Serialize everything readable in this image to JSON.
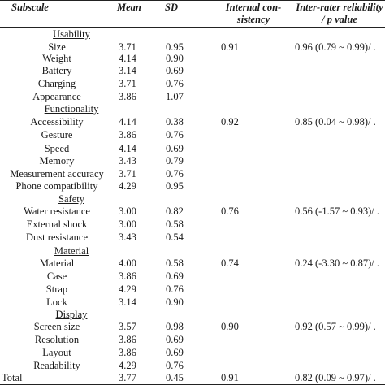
{
  "headers": {
    "subscale": "Subscale",
    "mean": "Mean",
    "sd": "SD",
    "internal_line1": "Internal con-",
    "internal_line2": "sistency",
    "inter_line1": "Inter-rater reliability",
    "inter_line2": "/ p value"
  },
  "groups": [
    {
      "title": "Usability",
      "internal_consistency": "0.91",
      "inter_rater": "0.96 (0.79 ~ 0.99)/ .",
      "rows": [
        {
          "label": "Size",
          "mean": "3.71",
          "sd": "0.95"
        },
        {
          "label": "Weight",
          "mean": "4.14",
          "sd": "0.90"
        },
        {
          "label": "Battery",
          "mean": "3.14",
          "sd": "0.69"
        },
        {
          "label": "Charging",
          "mean": "3.71",
          "sd": "0.76"
        },
        {
          "label": "Appearance",
          "mean": "3.86",
          "sd": "1.07"
        }
      ]
    },
    {
      "title": "Functionality",
      "internal_consistency": "0.92",
      "inter_rater": "0.85 (0.04 ~ 0.98)/ .",
      "rows": [
        {
          "label": "Accessibility",
          "mean": "4.14",
          "sd": "0.38"
        },
        {
          "label": "Gesture",
          "mean": "3.86",
          "sd": "0.76"
        },
        {
          "label": "Speed",
          "mean": "4.14",
          "sd": "0.69"
        },
        {
          "label": "Memory",
          "mean": "3.43",
          "sd": "0.79"
        },
        {
          "label": "Measurement accuracy",
          "mean": "3.71",
          "sd": "0.76"
        },
        {
          "label": "Phone compatibility",
          "mean": "4.29",
          "sd": "0.95"
        }
      ]
    },
    {
      "title": "Safety",
      "internal_consistency": "0.76",
      "inter_rater": "0.56 (-1.57 ~ 0.93)/ .",
      "rows": [
        {
          "label": "Water resistance",
          "mean": "3.00",
          "sd": "0.82"
        },
        {
          "label": "External shock",
          "mean": "3.00",
          "sd": "0.58"
        },
        {
          "label": "Dust resistance",
          "mean": "3.43",
          "sd": "0.54"
        }
      ]
    },
    {
      "title": "Material",
      "internal_consistency": "0.74",
      "inter_rater": "0.24 (-3.30 ~ 0.87)/ .",
      "rows": [
        {
          "label": "Material",
          "mean": "4.00",
          "sd": "0.58"
        },
        {
          "label": "Case",
          "mean": "3.86",
          "sd": "0.69"
        },
        {
          "label": "Strap",
          "mean": "4.29",
          "sd": "0.76"
        },
        {
          "label": "Lock",
          "mean": "3.14",
          "sd": "0.90"
        }
      ]
    },
    {
      "title": "Display",
      "internal_consistency": "0.90",
      "inter_rater": "0.92 (0.57 ~ 0.99)/ .",
      "rows": [
        {
          "label": "Screen size",
          "mean": "3.57",
          "sd": "0.98"
        },
        {
          "label": "Resolution",
          "mean": "3.86",
          "sd": "0.69"
        },
        {
          "label": "Layout",
          "mean": "3.86",
          "sd": "0.69"
        },
        {
          "label": "Readability",
          "mean": "4.29",
          "sd": "0.76"
        }
      ]
    }
  ],
  "total": {
    "label": "Total",
    "mean": "3.77",
    "sd": "0.45",
    "internal_consistency": "0.91",
    "inter_rater": "0.82 (0.09 ~ 0.97)/ ."
  }
}
